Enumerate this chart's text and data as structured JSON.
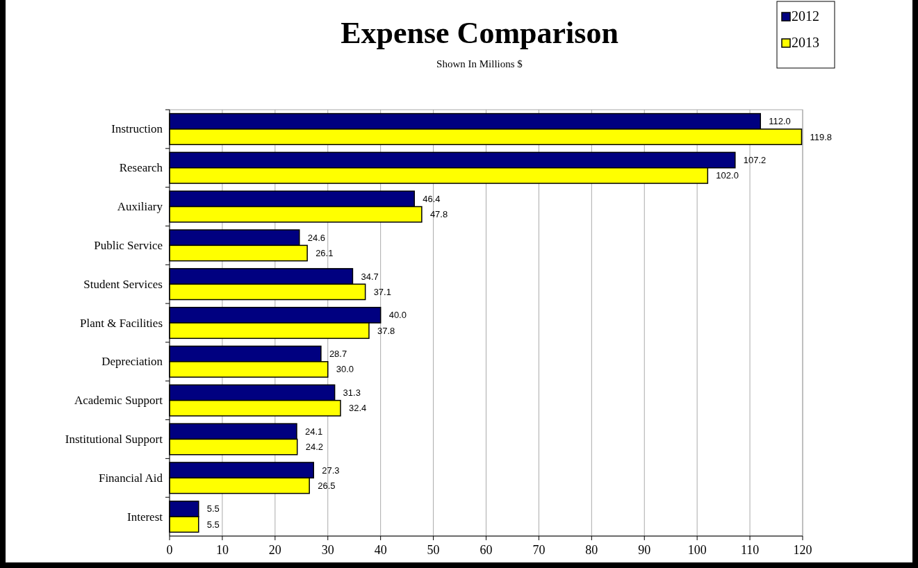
{
  "chart_data": {
    "type": "bar",
    "title": "Expense Comparison",
    "subtitle": "Shown In Millions $",
    "orientation": "horizontal",
    "categories": [
      "Instruction",
      "Research",
      "Auxiliary",
      "Public Service",
      "Student Services",
      "Plant & Facilities",
      "Depreciation",
      "Academic Support",
      "Institutional Support",
      "Financial Aid",
      "Interest"
    ],
    "series": [
      {
        "name": "2012",
        "color": "#000080",
        "values": [
          112.0,
          107.2,
          46.4,
          24.6,
          34.7,
          40.0,
          28.7,
          31.3,
          24.1,
          27.3,
          5.5
        ],
        "value_labels": [
          "112.0",
          "107.2",
          "46.4",
          "24.6",
          "34.7",
          "40.0",
          "28.7",
          "31.3",
          "24.1",
          "27.3",
          "5.5"
        ]
      },
      {
        "name": "2013",
        "color": "#ffff00",
        "values": [
          119.8,
          102.0,
          47.8,
          26.1,
          37.1,
          37.8,
          30.0,
          32.4,
          24.2,
          26.5,
          5.5
        ],
        "value_labels": [
          "119.8",
          "102.0",
          "47.8",
          "26.1",
          "37.1",
          "37.8",
          "30.0",
          "32.4",
          "24.2",
          "26.5",
          "5.5"
        ]
      }
    ],
    "xlim": [
      0,
      120
    ],
    "xticks": [
      0,
      10,
      20,
      30,
      40,
      50,
      60,
      70,
      80,
      90,
      100,
      110,
      120
    ],
    "grid": "x",
    "legend": "top right"
  }
}
